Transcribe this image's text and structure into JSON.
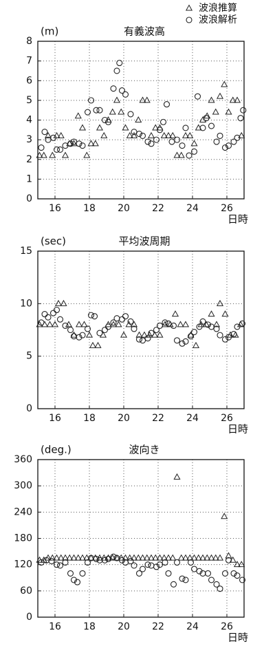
{
  "chart_data": [
    {
      "type": "scatter",
      "title": "有義波高",
      "y_label": "(m)",
      "x_label": "日時",
      "xlim": [
        15,
        27
      ],
      "xticks": [
        16,
        18,
        20,
        22,
        24,
        26
      ],
      "ylim": [
        0,
        8
      ],
      "yticks": [
        0,
        1,
        2,
        3,
        4,
        5,
        6,
        7,
        8
      ],
      "grid": true,
      "legend": "top right",
      "series": [
        {
          "name": "波浪推算",
          "marker": "triangle",
          "color": "#222222",
          "x": [
            15.1,
            15.35,
            15.6,
            15.85,
            16.1,
            16.35,
            16.6,
            16.85,
            17.1,
            17.35,
            17.6,
            17.85,
            18.1,
            18.35,
            18.6,
            18.85,
            19.1,
            19.35,
            19.6,
            19.85,
            20.1,
            20.35,
            20.6,
            20.85,
            21.1,
            21.35,
            21.6,
            21.85,
            22.1,
            22.35,
            22.6,
            22.85,
            23.1,
            23.35,
            23.6,
            23.85,
            24.1,
            24.35,
            24.6,
            24.85,
            25.1,
            25.35,
            25.6,
            25.85,
            26.1,
            26.35,
            26.6,
            26.85
          ],
          "values": [
            2.2,
            2.2,
            3.2,
            2.2,
            3.2,
            3.2,
            2.2,
            2.8,
            2.8,
            4.2,
            3.6,
            2.2,
            2.8,
            2.8,
            3.6,
            3.2,
            4.0,
            4.4,
            5.0,
            4.4,
            3.6,
            3.2,
            3.2,
            4.0,
            5.0,
            5.0,
            3.2,
            3.6,
            3.6,
            3.2,
            3.2,
            3.2,
            2.2,
            2.2,
            3.2,
            3.2,
            2.8,
            3.6,
            4.0,
            4.2,
            5.0,
            4.4,
            5.2,
            5.8,
            4.4,
            5.0,
            5.0,
            3.2
          ]
        },
        {
          "name": "波浪解析",
          "marker": "circle",
          "color": "#222222",
          "x": [
            15.2,
            15.4,
            15.6,
            15.9,
            16.1,
            16.3,
            16.6,
            16.9,
            17.1,
            17.4,
            17.6,
            17.9,
            18.1,
            18.4,
            18.6,
            18.9,
            19.1,
            19.4,
            19.6,
            19.75,
            19.9,
            20.1,
            20.4,
            20.6,
            20.9,
            21.1,
            21.4,
            21.6,
            21.9,
            22.1,
            22.3,
            22.5,
            22.8,
            23.1,
            23.4,
            23.6,
            23.8,
            24.1,
            24.3,
            24.6,
            24.8,
            25.1,
            25.4,
            25.6,
            25.9,
            26.1,
            26.4,
            26.6,
            26.8,
            26.95
          ],
          "values": [
            2.6,
            3.4,
            3.0,
            3.1,
            2.5,
            2.5,
            2.7,
            2.8,
            2.9,
            2.8,
            2.7,
            4.4,
            5.0,
            4.5,
            4.5,
            4.0,
            3.9,
            5.6,
            6.5,
            6.9,
            5.5,
            5.3,
            4.3,
            3.4,
            3.3,
            3.2,
            2.9,
            2.8,
            3.0,
            3.5,
            3.9,
            4.8,
            2.9,
            3.0,
            2.7,
            3.6,
            2.2,
            2.4,
            5.2,
            3.6,
            4.1,
            3.7,
            2.9,
            3.2,
            2.6,
            2.7,
            2.9,
            3.1,
            4.1,
            4.5
          ]
        }
      ]
    },
    {
      "type": "scatter",
      "title": "平均波周期",
      "y_label": "(sec)",
      "x_label": "日時",
      "xlim": [
        15,
        27
      ],
      "xticks": [
        16,
        18,
        20,
        22,
        24,
        26
      ],
      "ylim": [
        0,
        15
      ],
      "yticks": [
        0,
        5,
        10,
        15
      ],
      "grid": true,
      "series": [
        {
          "marker": "triangle",
          "color": "#222222",
          "x": [
            15.1,
            15.4,
            15.7,
            16.0,
            16.2,
            16.5,
            16.8,
            17.1,
            17.4,
            17.7,
            18.0,
            18.2,
            18.5,
            18.8,
            19.1,
            19.4,
            19.7,
            20.0,
            20.3,
            20.6,
            20.9,
            21.2,
            21.5,
            21.8,
            22.1,
            22.4,
            22.7,
            23.0,
            23.3,
            23.6,
            23.9,
            24.2,
            24.5,
            24.8,
            25.1,
            25.4,
            25.6,
            25.9,
            26.2,
            26.5,
            26.8
          ],
          "values": [
            8,
            8,
            8,
            8,
            10,
            10,
            8,
            7,
            8,
            8,
            7,
            6,
            6,
            7,
            8,
            8,
            8,
            7,
            8,
            8,
            7,
            7,
            7,
            7,
            7,
            8,
            8,
            9,
            8,
            8,
            7,
            6,
            8,
            8,
            9,
            8,
            10,
            9,
            7,
            7,
            8
          ]
        },
        {
          "marker": "circle",
          "color": "#222222",
          "x": [
            15.2,
            15.4,
            15.6,
            15.9,
            16.1,
            16.3,
            16.6,
            16.9,
            17.1,
            17.4,
            17.6,
            17.9,
            18.1,
            18.3,
            18.6,
            18.9,
            19.1,
            19.4,
            19.6,
            19.9,
            20.1,
            20.4,
            20.6,
            20.9,
            21.1,
            21.4,
            21.6,
            21.9,
            22.1,
            22.4,
            22.6,
            22.9,
            23.1,
            23.4,
            23.6,
            23.9,
            24.1,
            24.4,
            24.6,
            24.9,
            25.1,
            25.4,
            25.6,
            25.9,
            26.1,
            26.4,
            26.6,
            26.9
          ],
          "values": [
            8.2,
            9,
            8.7,
            9.1,
            9.4,
            8.5,
            7.9,
            7.5,
            6.9,
            6.8,
            7.0,
            7.6,
            8.9,
            8.8,
            7.2,
            7.5,
            7.8,
            8.2,
            8.6,
            8.5,
            8.8,
            8.3,
            7.6,
            6.6,
            6.5,
            6.7,
            7.2,
            7.5,
            7.9,
            8.2,
            8.1,
            7.9,
            6.5,
            6.2,
            6.4,
            6.9,
            7.3,
            7.8,
            8.3,
            8.0,
            7.8,
            7.6,
            7.0,
            6.6,
            6.8,
            7.1,
            7.8,
            8.1
          ]
        }
      ]
    },
    {
      "type": "scatter",
      "title": "波向き",
      "y_label": "(deg.)",
      "x_label": "日時",
      "xlim": [
        15,
        27
      ],
      "xticks": [
        16,
        18,
        20,
        22,
        24,
        26
      ],
      "ylim": [
        0,
        360
      ],
      "yticks": [
        0,
        60,
        120,
        180,
        240,
        300,
        360
      ],
      "grid": true,
      "series": [
        {
          "marker": "triangle",
          "color": "#222222",
          "x": [
            15.1,
            15.35,
            15.6,
            15.85,
            16.1,
            16.35,
            16.6,
            16.85,
            17.1,
            17.35,
            17.6,
            17.85,
            18.1,
            18.35,
            18.6,
            18.85,
            19.1,
            19.35,
            19.6,
            19.85,
            20.1,
            20.35,
            20.6,
            20.85,
            21.1,
            21.35,
            21.6,
            21.85,
            22.1,
            22.35,
            22.6,
            22.85,
            23.1,
            23.35,
            23.6,
            23.85,
            24.1,
            24.35,
            24.6,
            24.85,
            25.1,
            25.35,
            25.6,
            25.85,
            26.1,
            26.35,
            26.6,
            26.85
          ],
          "values": [
            130,
            130,
            135,
            135,
            135,
            135,
            135,
            135,
            135,
            135,
            135,
            135,
            135,
            135,
            135,
            135,
            135,
            135,
            135,
            135,
            135,
            135,
            135,
            135,
            135,
            135,
            135,
            135,
            135,
            135,
            135,
            135,
            320,
            135,
            135,
            135,
            135,
            135,
            135,
            135,
            135,
            135,
            135,
            230,
            140,
            130,
            120,
            120
          ]
        },
        {
          "marker": "circle",
          "color": "#222222",
          "x": [
            15.2,
            15.5,
            15.8,
            16.1,
            16.3,
            16.6,
            16.9,
            17.1,
            17.3,
            17.6,
            17.9,
            18.1,
            18.4,
            18.6,
            18.9,
            19.1,
            19.4,
            19.6,
            19.9,
            20.1,
            20.4,
            20.6,
            20.9,
            21.1,
            21.4,
            21.6,
            21.9,
            22.1,
            22.4,
            22.6,
            22.9,
            23.1,
            23.4,
            23.6,
            23.9,
            24.1,
            24.4,
            24.6,
            24.9,
            25.1,
            25.4,
            25.6,
            25.9,
            26.1,
            26.4,
            26.6,
            26.9
          ],
          "values": [
            125,
            130,
            128,
            120,
            118,
            125,
            100,
            85,
            80,
            100,
            125,
            135,
            133,
            130,
            130,
            133,
            138,
            135,
            130,
            125,
            128,
            118,
            100,
            110,
            120,
            118,
            115,
            120,
            125,
            100,
            75,
            125,
            88,
            85,
            125,
            110,
            105,
            100,
            100,
            85,
            75,
            65,
            100,
            130,
            100,
            95,
            85
          ]
        }
      ]
    }
  ]
}
